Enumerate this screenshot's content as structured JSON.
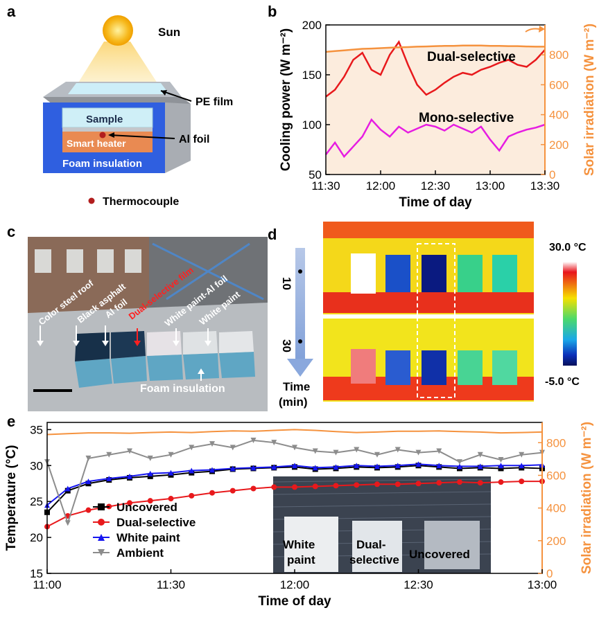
{
  "panels": {
    "a": {
      "letter": "a",
      "labels": {
        "sun": "Sun",
        "pe_film": "PE film",
        "sample": "Sample",
        "smart_heater": "Smart heater",
        "al_foil": "Al foil",
        "foam": "Foam insulation",
        "thermocouple": "Thermocouple"
      },
      "colors": {
        "sun": "#f6b81c",
        "foam": "#2f5fe0",
        "heater": "#e98a52",
        "sample": "#cfeff7",
        "dot": "#b21e1e"
      }
    },
    "c": {
      "letter": "c",
      "labels": {
        "color_steel_roof": "Color steel roof",
        "black_asphalt": "Black asphalt",
        "al_foil": "Al foil",
        "dual_selective_film": "Dual-selective film",
        "white_paint_al_foil": "White paint-Al foil",
        "white_paint": "White paint",
        "foam_insulation": "Foam insulation"
      }
    },
    "d": {
      "letter": "d",
      "time_axis": {
        "ticks": [
          "10",
          "30"
        ],
        "label_line1": "Time",
        "label_line2": "(min)"
      },
      "colorbar": {
        "max_label": "30.0 °C",
        "min_label": "-5.0 °C"
      }
    }
  },
  "chart_data": [
    {
      "panel": "b",
      "type": "line",
      "xlabel": "Time of day",
      "ylabel": "Cooling power (W m⁻²)",
      "y2label": "Solar irradiation (W m⁻²)",
      "x_ticks": [
        "11:30",
        "12:00",
        "12:30",
        "13:00",
        "13:30"
      ],
      "x_range": [
        "11:30",
        "13:30"
      ],
      "ylim": [
        50,
        200
      ],
      "y_ticks": [
        50,
        100,
        150,
        200
      ],
      "y2lim": [
        0,
        1000
      ],
      "y2_ticks": [
        0,
        200,
        400,
        600,
        800
      ],
      "x": [
        "11:30",
        "11:35",
        "11:40",
        "11:45",
        "11:50",
        "11:55",
        "12:00",
        "12:05",
        "12:10",
        "12:15",
        "12:20",
        "12:25",
        "12:30",
        "12:35",
        "12:40",
        "12:45",
        "12:50",
        "12:55",
        "13:00",
        "13:05",
        "13:10",
        "13:15",
        "13:20",
        "13:25",
        "13:30"
      ],
      "series": [
        {
          "name": "Dual-selective",
          "axis": "left",
          "color": "#e8191c",
          "values": [
            128,
            135,
            148,
            165,
            172,
            155,
            150,
            170,
            183,
            160,
            140,
            130,
            135,
            142,
            148,
            152,
            150,
            155,
            158,
            162,
            165,
            160,
            158,
            165,
            175
          ]
        },
        {
          "name": "Mono-selective",
          "axis": "left",
          "color": "#e61ce2",
          "values": [
            70,
            82,
            68,
            78,
            88,
            105,
            95,
            88,
            98,
            92,
            96,
            100,
            98,
            94,
            100,
            96,
            92,
            98,
            85,
            74,
            88,
            92,
            95,
            97,
            100
          ]
        },
        {
          "axis": "right",
          "color": "#f5923e",
          "values": [
            820,
            825,
            830,
            835,
            840,
            842,
            845,
            848,
            850,
            852,
            855,
            856,
            858,
            860,
            860,
            862,
            862,
            862,
            860,
            860,
            858,
            858,
            856,
            855,
            855
          ]
        }
      ]
    },
    {
      "panel": "e",
      "type": "line",
      "xlabel": "Time of day",
      "ylabel": "Temperature (°C)",
      "y2label": "Solar irradiation (W m⁻²)",
      "x_ticks": [
        "11:00",
        "11:30",
        "12:00",
        "12:30",
        "13:00"
      ],
      "x_range": [
        "11:00",
        "13:00"
      ],
      "ylim": [
        15,
        36
      ],
      "y_ticks": [
        15,
        20,
        25,
        30,
        35
      ],
      "y2lim": [
        0,
        924
      ],
      "y2_ticks": [
        0,
        200,
        400,
        600,
        800
      ],
      "legend_position": "bottom-left",
      "x": [
        "11:00",
        "11:05",
        "11:10",
        "11:15",
        "11:20",
        "11:25",
        "11:30",
        "11:35",
        "11:40",
        "11:45",
        "11:50",
        "11:55",
        "12:00",
        "12:05",
        "12:10",
        "12:15",
        "12:20",
        "12:25",
        "12:30",
        "12:35",
        "12:40",
        "12:45",
        "12:50",
        "12:55",
        "13:00"
      ],
      "series": [
        {
          "name": "Uncovered",
          "axis": "left",
          "color": "#000000",
          "marker": "square",
          "values": [
            23.5,
            26.5,
            27.5,
            28.0,
            28.3,
            28.5,
            28.7,
            29.0,
            29.2,
            29.5,
            29.6,
            29.7,
            29.8,
            29.5,
            29.6,
            29.8,
            29.7,
            29.8,
            30.0,
            29.8,
            29.6,
            29.7,
            29.6,
            29.7,
            29.6
          ]
        },
        {
          "name": "Dual-selective",
          "axis": "left",
          "color": "#e8191c",
          "marker": "circle",
          "values": [
            21.5,
            23.0,
            23.8,
            24.3,
            24.8,
            25.1,
            25.4,
            25.8,
            26.2,
            26.5,
            26.8,
            27.0,
            27.0,
            27.1,
            27.2,
            27.3,
            27.4,
            27.4,
            27.5,
            27.6,
            27.7,
            27.6,
            27.7,
            27.8,
            27.8
          ]
        },
        {
          "name": "White paint",
          "axis": "left",
          "color": "#1616f0",
          "marker": "triangle",
          "values": [
            24.5,
            26.8,
            27.8,
            28.2,
            28.5,
            28.9,
            29.0,
            29.3,
            29.4,
            29.6,
            29.7,
            29.8,
            30.0,
            29.7,
            29.8,
            30.0,
            29.9,
            30.0,
            30.2,
            30.0,
            29.9,
            29.9,
            30.0,
            30.0,
            30.1
          ]
        },
        {
          "name": "Ambient",
          "axis": "left",
          "color": "#8c8c8c",
          "marker": "triangle-down",
          "values": [
            30.5,
            22.0,
            31.0,
            31.5,
            32.0,
            31.0,
            31.5,
            32.5,
            33.0,
            32.5,
            33.5,
            33.2,
            32.5,
            32.0,
            31.8,
            32.2,
            31.5,
            32.2,
            31.8,
            32.0,
            30.5,
            31.5,
            30.8,
            31.5,
            31.8
          ]
        },
        {
          "axis": "right",
          "color": "#f5923e",
          "values": [
            850,
            855,
            860,
            860,
            858,
            862,
            865,
            862,
            868,
            872,
            870,
            875,
            880,
            875,
            868,
            862,
            865,
            870,
            870,
            872,
            868,
            865,
            860,
            862,
            865
          ]
        }
      ],
      "inset_photo_labels": {
        "white_paint": "White paint",
        "dual_selective": "Dual-selective",
        "uncovered": "Uncovered"
      }
    }
  ]
}
